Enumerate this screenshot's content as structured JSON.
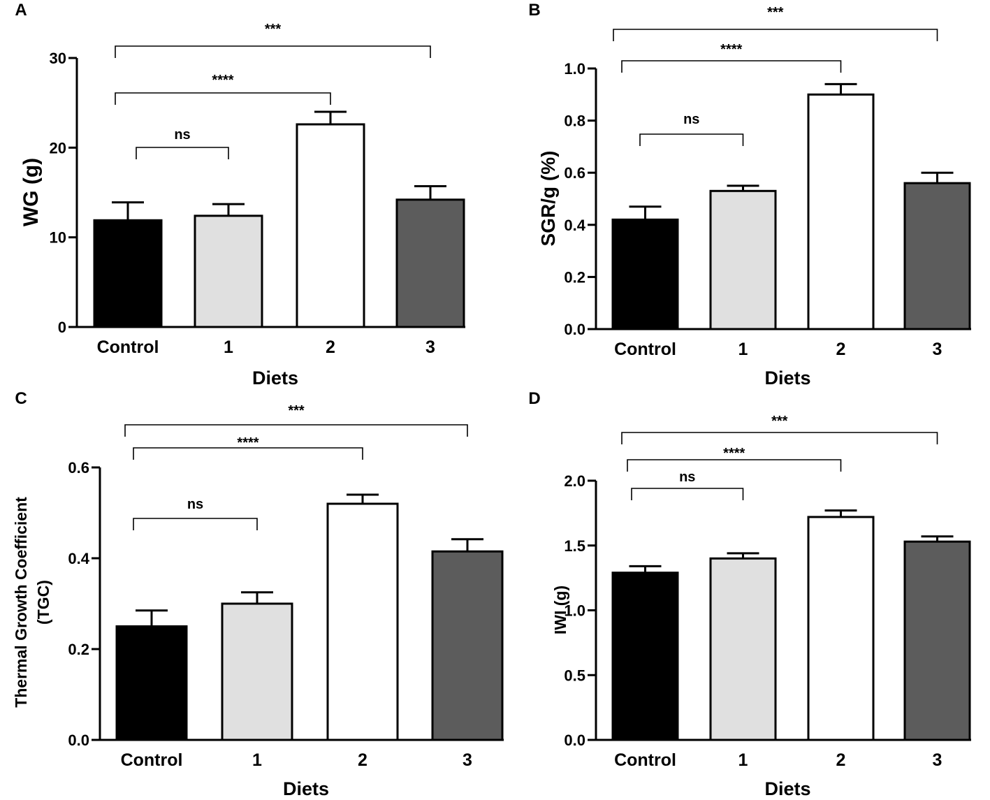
{
  "chart_data": [
    {
      "panel": "A",
      "type": "bar",
      "categories": [
        "Control",
        "1",
        "2",
        "3"
      ],
      "values": [
        11.9,
        12.4,
        22.6,
        14.2
      ],
      "errors": [
        2.0,
        1.3,
        1.4,
        1.5
      ],
      "colors": [
        "#000000",
        "#e0e0e0",
        "#ffffff",
        "#5c5c5c"
      ],
      "xlabel": "Diets",
      "ylabel": "WG (g)",
      "ylim": [
        0,
        30
      ],
      "ticks": [
        0,
        10,
        20,
        30
      ],
      "tick_labels": [
        "0",
        "10",
        "20",
        "30"
      ],
      "brackets": [
        {
          "from": 0,
          "to": 1,
          "label": "ns"
        },
        {
          "from": 0,
          "to": 2,
          "label": "****"
        },
        {
          "from": 0,
          "to": 3,
          "label": "***"
        }
      ]
    },
    {
      "panel": "B",
      "type": "bar",
      "categories": [
        "Control",
        "1",
        "2",
        "3"
      ],
      "values": [
        0.42,
        0.53,
        0.9,
        0.56
      ],
      "errors": [
        0.05,
        0.02,
        0.04,
        0.04
      ],
      "colors": [
        "#000000",
        "#e0e0e0",
        "#ffffff",
        "#5c5c5c"
      ],
      "xlabel": "Diets",
      "ylabel": "SGR/g (%)",
      "ylim": [
        0,
        1.0
      ],
      "ticks": [
        0,
        0.2,
        0.4,
        0.6,
        0.8,
        1.0
      ],
      "tick_labels": [
        "0.0",
        "0.2",
        "0.4",
        "0.6",
        "0.8",
        "1.0"
      ],
      "brackets": [
        {
          "from": 0,
          "to": 1,
          "label": "ns"
        },
        {
          "from": 0,
          "to": 2,
          "label": "****"
        },
        {
          "from": 0,
          "to": 3,
          "label": "***"
        }
      ]
    },
    {
      "panel": "C",
      "type": "bar",
      "categories": [
        "Control",
        "1",
        "2",
        "3"
      ],
      "values": [
        0.25,
        0.3,
        0.52,
        0.415
      ],
      "errors": [
        0.035,
        0.025,
        0.02,
        0.027
      ],
      "colors": [
        "#000000",
        "#e0e0e0",
        "#ffffff",
        "#5c5c5c"
      ],
      "xlabel": "Diets",
      "ylabel": "Thermal Growth Coefficient",
      "ylabel2": "(TGC)",
      "ylim": [
        0,
        0.6
      ],
      "ticks": [
        0,
        0.2,
        0.4,
        0.6
      ],
      "tick_labels": [
        "0.0",
        "0.2",
        "0.4",
        "0.6"
      ],
      "brackets": [
        {
          "from": 0,
          "to": 1,
          "label": "ns"
        },
        {
          "from": 0,
          "to": 2,
          "label": "****"
        },
        {
          "from": 0,
          "to": 3,
          "label": "***"
        }
      ]
    },
    {
      "panel": "D",
      "type": "bar",
      "categories": [
        "Control",
        "1",
        "2",
        "3"
      ],
      "values": [
        1.29,
        1.4,
        1.72,
        1.53
      ],
      "errors": [
        0.05,
        0.04,
        0.05,
        0.04
      ],
      "colors": [
        "#000000",
        "#e0e0e0",
        "#ffffff",
        "#5c5c5c"
      ],
      "xlabel": "Diets",
      "ylabel": "IWI (g)",
      "ylim": [
        0,
        2.0
      ],
      "ticks": [
        0,
        0.5,
        1.0,
        1.5,
        2.0
      ],
      "tick_labels": [
        "0.0",
        "0.5",
        "1.0",
        "1.5",
        "2.0"
      ],
      "brackets": [
        {
          "from": 0,
          "to": 1,
          "label": "ns"
        },
        {
          "from": 0,
          "to": 2,
          "label": "****"
        },
        {
          "from": 0,
          "to": 3,
          "label": "***"
        }
      ]
    }
  ]
}
